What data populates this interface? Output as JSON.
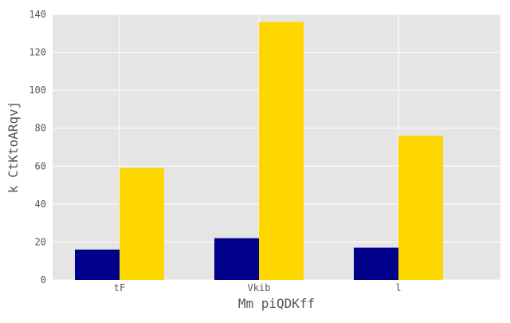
{
  "chart_data": {
    "type": "bar",
    "title": "",
    "xlabel": "Mm piQDKff",
    "ylabel": "k CtKtoARqvj",
    "categories": [
      "tF",
      "Vkib",
      "l"
    ],
    "series": [
      {
        "color": "#00008b",
        "values": [
          16,
          22,
          17
        ]
      },
      {
        "color": "#ffd700",
        "values": [
          59,
          136,
          76
        ]
      }
    ],
    "ylim": [
      0,
      140
    ],
    "yticks": [
      0,
      20,
      40,
      60,
      80,
      100,
      120,
      140
    ],
    "grid": true,
    "legend": "none",
    "plot_background": "#e5e5e5",
    "grid_color": "#ffffff"
  }
}
